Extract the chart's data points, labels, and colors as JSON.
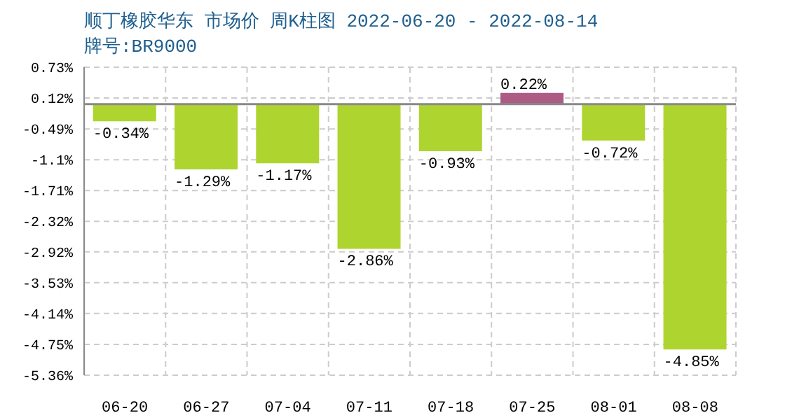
{
  "chart_data": {
    "type": "bar",
    "title": "顺丁橡胶华东 市场价 周K柱图 2022-06-20 - 2022-08-14",
    "subtitle": "牌号:BR9000",
    "categories": [
      "06-20",
      "06-27",
      "07-04",
      "07-11",
      "07-18",
      "07-25",
      "08-01",
      "08-08"
    ],
    "values": [
      -0.34,
      -1.29,
      -1.17,
      -2.86,
      -0.93,
      0.22,
      -0.72,
      -4.85
    ],
    "colors": [
      "#aed52f",
      "#aed52f",
      "#aed52f",
      "#aed52f",
      "#aed52f",
      "#ad5a85",
      "#aed52f",
      "#aed52f"
    ],
    "value_labels": [
      "-0.34%",
      "-1.29%",
      "-1.17%",
      "-2.86%",
      "-0.93%",
      "0.22%",
      "-0.72%",
      "-4.85%"
    ],
    "ylim": [
      -5.36,
      0.73
    ],
    "yticks": [
      {
        "value": -5.36,
        "label": "-5.36%"
      },
      {
        "value": -4.75,
        "label": "-4.75%"
      },
      {
        "value": -4.14,
        "label": "-4.14%"
      },
      {
        "value": -3.53,
        "label": "-3.53%"
      },
      {
        "value": -2.92,
        "label": "-2.92%"
      },
      {
        "value": -2.32,
        "label": "-2.32%"
      },
      {
        "value": -1.71,
        "label": "-1.71%"
      },
      {
        "value": -1.1,
        "label": "-1.1%"
      },
      {
        "value": -0.49,
        "label": "-0.49%"
      },
      {
        "value": 0.12,
        "label": "0.12%"
      },
      {
        "value": 0.73,
        "label": "0.73%"
      }
    ],
    "ref_lines": [
      {
        "axis": "y",
        "value": 0,
        "color": "#888888"
      }
    ],
    "grid": true
  }
}
